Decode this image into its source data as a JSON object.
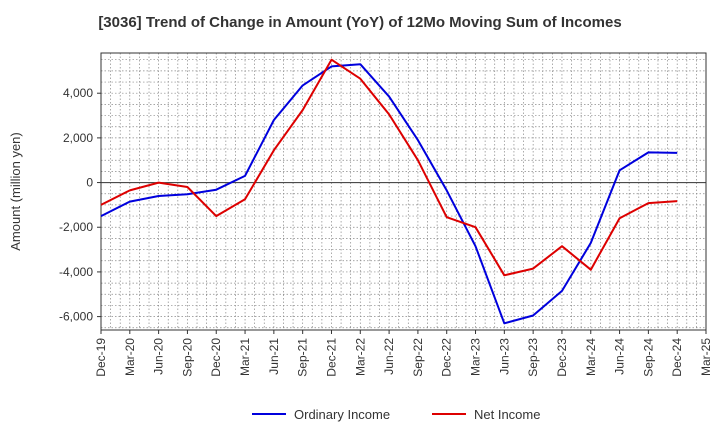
{
  "chart_data": {
    "type": "line",
    "title": "[3036]  Trend of Change in Amount (YoY) of 12Mo Moving Sum of Incomes",
    "xlabel": "",
    "ylabel": "Amount (million yen)",
    "ylim": [
      -6600,
      5800
    ],
    "yticks": [
      -6000,
      -4000,
      -2000,
      0,
      2000,
      4000
    ],
    "ytick_labels": [
      "-6,000",
      "-4,000",
      "-2,000",
      "0",
      "2,000",
      "4,000"
    ],
    "categories": [
      "Dec-19",
      "Mar-20",
      "Jun-20",
      "Sep-20",
      "Dec-20",
      "Mar-21",
      "Jun-21",
      "Sep-21",
      "Dec-21",
      "Mar-22",
      "Jun-22",
      "Sep-22",
      "Dec-22",
      "Mar-23",
      "Jun-23",
      "Sep-23",
      "Dec-23",
      "Mar-24",
      "Jun-24",
      "Sep-24",
      "Dec-24",
      "Mar-25"
    ],
    "x": [
      "Dec-19",
      "Jan-20",
      "Feb-20",
      "Mar-20",
      "Apr-20",
      "May-20",
      "Jun-20",
      "Jul-20",
      "Aug-20",
      "Sep-20",
      "Oct-20",
      "Nov-20",
      "Dec-20",
      "Jan-21",
      "Feb-21",
      "Mar-21",
      "Apr-21",
      "May-21",
      "Jun-21",
      "Jul-21",
      "Aug-21",
      "Sep-21",
      "Oct-21",
      "Nov-21",
      "Dec-21",
      "Jan-22",
      "Feb-22",
      "Mar-22",
      "Apr-22",
      "May-22",
      "Jun-22",
      "Jul-22",
      "Aug-22",
      "Sep-22",
      "Oct-22",
      "Nov-22",
      "Dec-22",
      "Jan-23",
      "Feb-23",
      "Mar-23",
      "Apr-23",
      "May-23",
      "Jun-23",
      "Jul-23",
      "Aug-23",
      "Sep-23",
      "Oct-23",
      "Nov-23",
      "Dec-23",
      "Jan-24",
      "Feb-24",
      "Mar-24",
      "Apr-24",
      "May-24",
      "Jun-24",
      "Jul-24",
      "Aug-24",
      "Sep-24",
      "Oct-24",
      "Nov-24",
      "Dec-24",
      "Jan-25",
      "Feb-25",
      "Mar-25"
    ],
    "series": [
      {
        "name": "Ordinary Income",
        "color": "#0000dd",
        "points": [
          [
            "Dec-19",
            -1500
          ],
          [
            "Mar-20",
            -850
          ],
          [
            "Jun-20",
            -600
          ],
          [
            "Sep-20",
            -520
          ],
          [
            "Dec-20",
            -320
          ],
          [
            "Mar-21",
            300
          ],
          [
            "Jun-21",
            2800
          ],
          [
            "Sep-21",
            4350
          ],
          [
            "Dec-21",
            5200
          ],
          [
            "Mar-22",
            5300
          ],
          [
            "Jun-22",
            3850
          ],
          [
            "Sep-22",
            1900
          ],
          [
            "Dec-22",
            -350
          ],
          [
            "Mar-23",
            -2850
          ],
          [
            "Jun-23",
            -6300
          ],
          [
            "Sep-23",
            -5950
          ],
          [
            "Dec-23",
            -4850
          ],
          [
            "Mar-24",
            -2700
          ],
          [
            "Jun-24",
            550
          ],
          [
            "Sep-24",
            1350
          ],
          [
            "Dec-24",
            1330
          ]
        ]
      },
      {
        "name": "Net Income",
        "color": "#dd0000",
        "points": [
          [
            "Dec-19",
            -1000
          ],
          [
            "Mar-20",
            -350
          ],
          [
            "Jun-20",
            0
          ],
          [
            "Sep-20",
            -200
          ],
          [
            "Dec-20",
            -1500
          ],
          [
            "Mar-21",
            -750
          ],
          [
            "Jun-21",
            1450
          ],
          [
            "Sep-21",
            3250
          ],
          [
            "Dec-21",
            5500
          ],
          [
            "Mar-22",
            4650
          ],
          [
            "Jun-22",
            3050
          ],
          [
            "Sep-22",
            1000
          ],
          [
            "Dec-22",
            -1550
          ],
          [
            "Mar-23",
            -2000
          ],
          [
            "Jun-23",
            -4150
          ],
          [
            "Sep-23",
            -3850
          ],
          [
            "Dec-23",
            -2850
          ],
          [
            "Mar-24",
            -3900
          ],
          [
            "Jun-24",
            -1600
          ],
          [
            "Sep-24",
            -920
          ],
          [
            "Dec-24",
            -830
          ]
        ]
      }
    ],
    "grid": true,
    "legend": "bottom"
  }
}
